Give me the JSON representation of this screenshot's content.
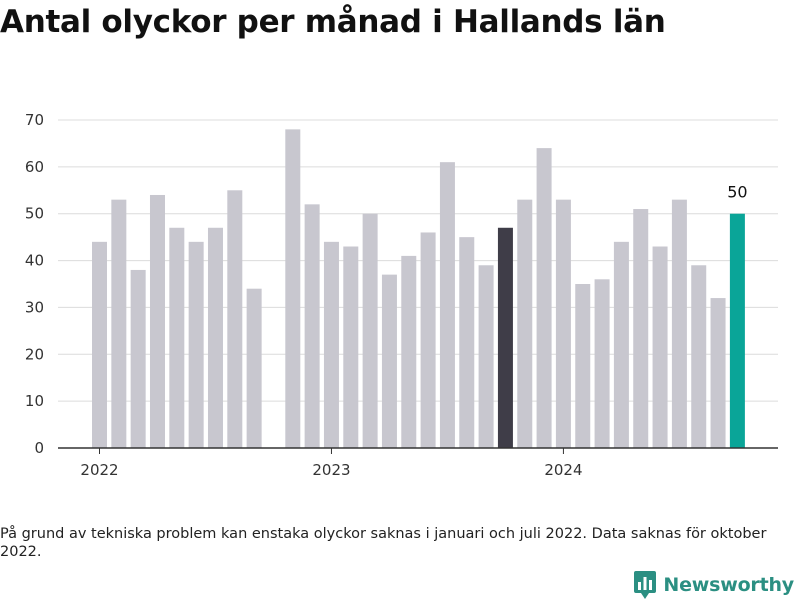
{
  "title": "Antal olyckor per månad i Hallands län",
  "footnote": "På grund av tekniska problem kan enstaka olyckor saknas i januari och juli 2022. Data saknas för oktober 2022.",
  "brand": {
    "name": "Newsworthy",
    "icon": "newsworthy-logo-icon",
    "color": "#2b8f82"
  },
  "chart_data": {
    "type": "bar",
    "title": "Antal olyckor per månad i Hallands län",
    "xlabel": "",
    "ylabel": "",
    "ylim": [
      0,
      70
    ],
    "yticks": [
      0,
      10,
      20,
      30,
      40,
      50,
      60,
      70
    ],
    "xtick_labels": [
      "2022",
      "2023",
      "2024"
    ],
    "grid": true,
    "colors": {
      "default": "#c8c7cf",
      "highlight": "#3f3d48",
      "latest": "#0aa598"
    },
    "categories": [
      "2022-01",
      "2022-02",
      "2022-03",
      "2022-04",
      "2022-05",
      "2022-06",
      "2022-07",
      "2022-08",
      "2022-09",
      "2022-10",
      "2022-11",
      "2022-12",
      "2023-01",
      "2023-02",
      "2023-03",
      "2023-04",
      "2023-05",
      "2023-06",
      "2023-07",
      "2023-08",
      "2023-09",
      "2023-10",
      "2023-11",
      "2023-12",
      "2024-01",
      "2024-02",
      "2024-03",
      "2024-04",
      "2024-05",
      "2024-06",
      "2024-07",
      "2024-08",
      "2024-09",
      "2024-10"
    ],
    "values": [
      44,
      53,
      38,
      54,
      47,
      44,
      47,
      55,
      34,
      null,
      68,
      52,
      44,
      43,
      50,
      37,
      41,
      46,
      61,
      45,
      39,
      47,
      53,
      64,
      53,
      35,
      36,
      44,
      51,
      43,
      53,
      39,
      32,
      50
    ],
    "highlight_category": "2023-10",
    "latest_category": "2024-10",
    "data_labels": [
      {
        "category": "2024-10",
        "text": "50"
      }
    ]
  }
}
